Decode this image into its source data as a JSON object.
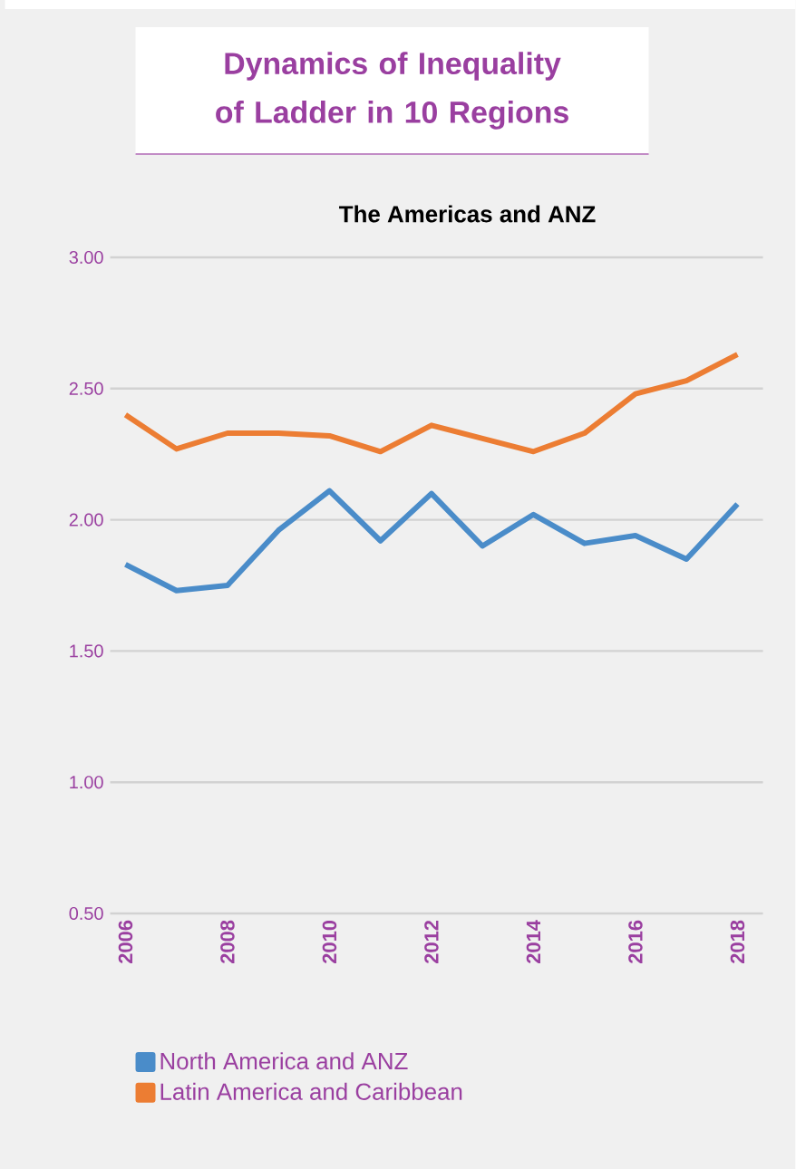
{
  "chart_data": {
    "type": "line",
    "title": "Dynamics of Inequality of Ladder in 10 Regions",
    "subtitle": "The Americas and ANZ",
    "x": [
      2006,
      2007,
      2008,
      2009,
      2010,
      2011,
      2012,
      2013,
      2014,
      2015,
      2016,
      2017,
      2018
    ],
    "series": [
      {
        "name": "North America and ANZ",
        "color": "#4a8cc9",
        "values": [
          1.83,
          1.73,
          1.75,
          1.96,
          2.11,
          1.92,
          2.1,
          1.9,
          2.02,
          1.91,
          1.94,
          1.85,
          2.06
        ]
      },
      {
        "name": "Latin America and Caribbean",
        "color": "#ec7d33",
        "values": [
          2.4,
          2.27,
          2.33,
          2.33,
          2.32,
          2.26,
          2.36,
          2.31,
          2.26,
          2.33,
          2.48,
          2.53,
          2.63
        ]
      }
    ],
    "xlim": [
      2005.7,
      2018.5
    ],
    "xticks": [
      2006,
      2008,
      2010,
      2012,
      2014,
      2016,
      2018
    ],
    "ylim": [
      0.5,
      3.0
    ],
    "yticks": [
      {
        "value": 0.5,
        "label": "0.50"
      },
      {
        "value": 1.0,
        "label": "1.00"
      },
      {
        "value": 1.5,
        "label": "1.50"
      },
      {
        "value": 2.0,
        "label": "2.00"
      },
      {
        "value": 2.5,
        "label": "2.50"
      },
      {
        "value": 3.0,
        "label": "3.00"
      }
    ],
    "grid": "y",
    "legend": "bottom",
    "marker": "none",
    "line_style": "solid"
  }
}
